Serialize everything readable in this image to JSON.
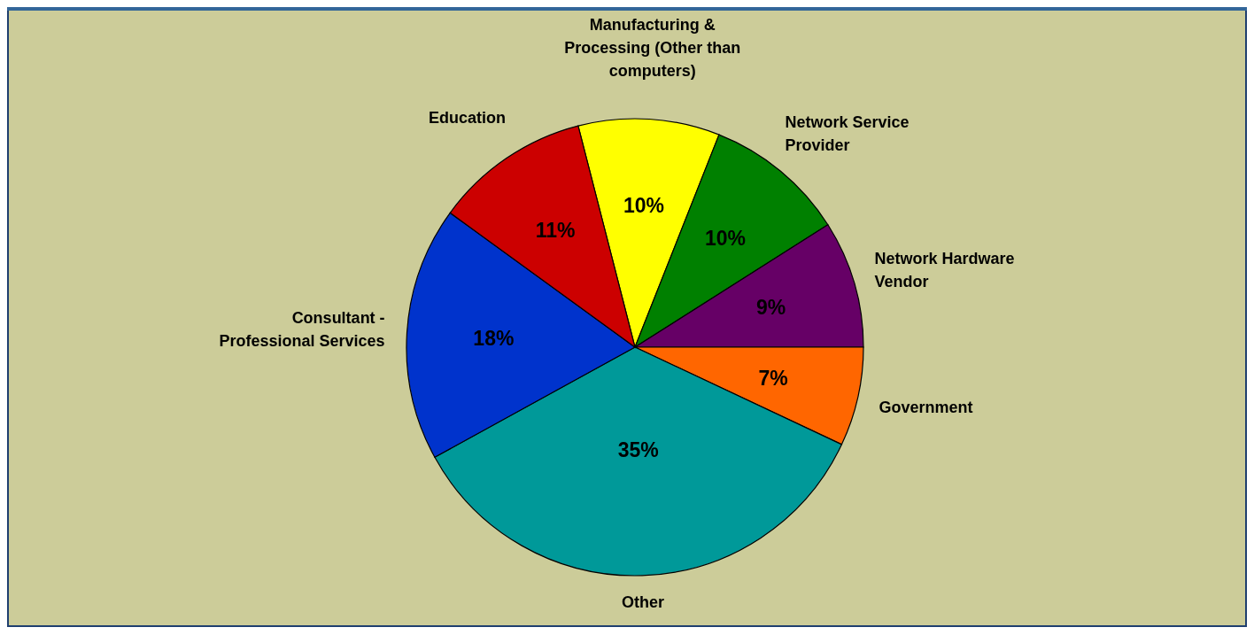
{
  "chart_data": {
    "type": "pie",
    "categories": [
      "Manufacturing & Processing (Other than computers)",
      "Network Service Provider",
      "Network Hardware Vendor",
      "Government",
      "Other",
      "Consultant - Professional Services",
      "Education"
    ],
    "values": [
      10,
      10,
      9,
      7,
      35,
      18,
      11
    ],
    "colors": [
      "#ffff00",
      "#008000",
      "#660066",
      "#ff6600",
      "#009999",
      "#0033cc",
      "#cc0000"
    ],
    "value_labels": [
      "10%",
      "10%",
      "9%",
      "7%",
      "35%",
      "18%",
      "11%"
    ]
  }
}
